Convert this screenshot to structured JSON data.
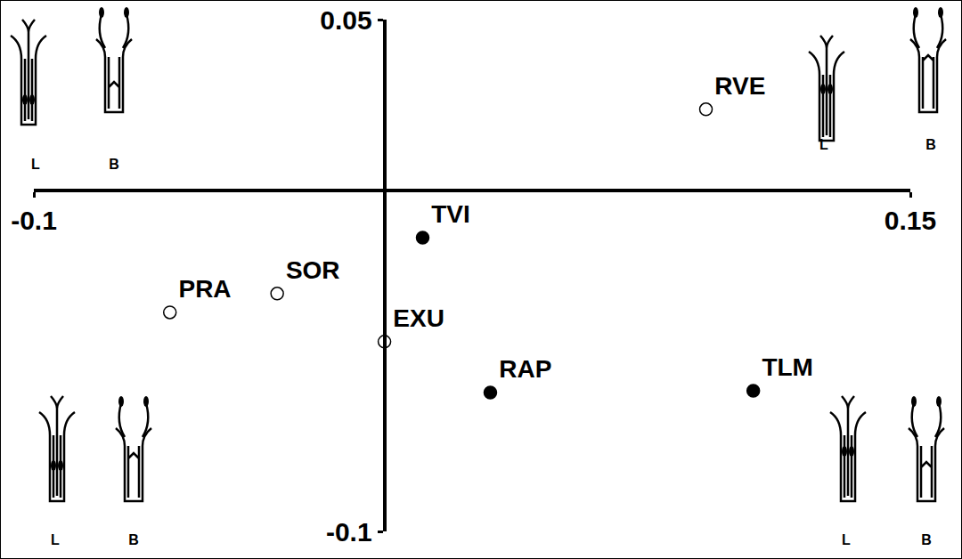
{
  "chart_data": {
    "type": "scatter",
    "xlim": [
      -0.1,
      0.15
    ],
    "ylim": [
      -0.1,
      0.05
    ],
    "xticks": [
      -0.1,
      0.15
    ],
    "yticks": [
      -0.1,
      0.05
    ],
    "grid": false,
    "series": [
      {
        "marker": "circle-open",
        "color": "#000000",
        "labels": [
          "RVE",
          "PRA",
          "SOR",
          "EXU"
        ],
        "x": [
          0.0917,
          -0.0612,
          -0.0306,
          0.0
        ],
        "y": [
          0.0237,
          -0.0358,
          -0.0303,
          -0.0444
        ]
      },
      {
        "marker": "circle",
        "color": "#000000",
        "labels": [
          "TVI",
          "RAP",
          "TLM"
        ],
        "x": [
          0.0109,
          0.0302,
          0.1052
        ],
        "y": [
          -0.0139,
          -0.0593,
          -0.0588
        ]
      }
    ],
    "icon_labels": [
      "L",
      "B"
    ]
  }
}
